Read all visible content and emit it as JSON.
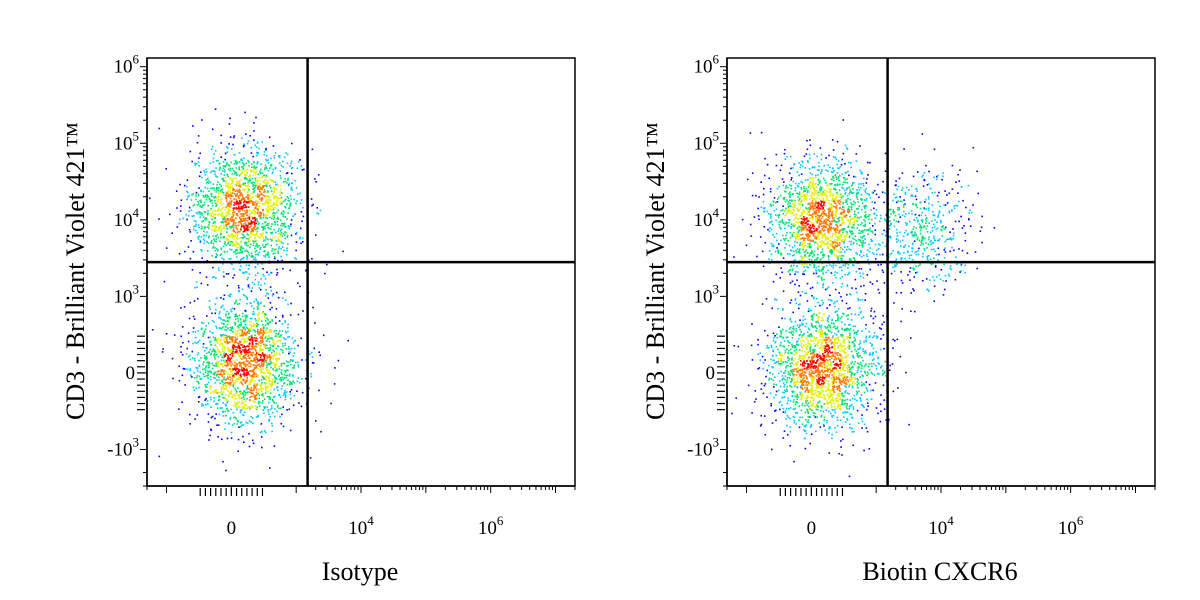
{
  "chart_data": [
    {
      "type": "scatter",
      "variant": "flow-cytometry-density-dot-plot",
      "xlabel": "Isotype",
      "ylabel": "CD3 - Brilliant Violet 421™",
      "x_scale": "biexponential",
      "y_scale": "biexponential",
      "xlim": [
        -2000,
        20000000
      ],
      "ylim": [
        -3000,
        1300000
      ],
      "x_ticks": [
        {
          "value": 0,
          "base": "0",
          "exp": ""
        },
        {
          "value": 10000,
          "base": "10",
          "exp": "4"
        },
        {
          "value": 1000000,
          "base": "10",
          "exp": "6"
        }
      ],
      "y_ticks": [
        {
          "value": 1000000,
          "base": "10",
          "exp": "6"
        },
        {
          "value": 100000,
          "base": "10",
          "exp": "5"
        },
        {
          "value": 10000,
          "base": "10",
          "exp": "4"
        },
        {
          "value": 1000,
          "base": "10",
          "exp": "3"
        },
        {
          "value": 0,
          "base": "0",
          "exp": ""
        },
        {
          "value": -1000,
          "base": "-10",
          "exp": "3"
        }
      ],
      "gate": {
        "x": 1500,
        "y": 2800
      },
      "populations": [
        {
          "name": "",
          "x_center": 200,
          "y_center": 14000,
          "count": 1800
        },
        {
          "name": "",
          "x_center": 200,
          "y_center": 150,
          "count": 1900
        }
      ],
      "density_colors": [
        "#0000ff",
        "#00c8ff",
        "#00e070",
        "#e0f000",
        "#ff7a00",
        "#ff0000"
      ]
    },
    {
      "type": "scatter",
      "variant": "flow-cytometry-density-dot-plot",
      "xlabel": "Biotin CXCR6",
      "ylabel": "CD3 - Brilliant Violet 421™",
      "x_scale": "biexponential",
      "y_scale": "biexponential",
      "xlim": [
        -2000,
        20000000
      ],
      "ylim": [
        -3000,
        1300000
      ],
      "x_ticks": [
        {
          "value": 0,
          "base": "0",
          "exp": ""
        },
        {
          "value": 10000,
          "base": "10",
          "exp": "4"
        },
        {
          "value": 1000000,
          "base": "10",
          "exp": "6"
        }
      ],
      "y_ticks": [
        {
          "value": 1000000,
          "base": "10",
          "exp": "6"
        },
        {
          "value": 100000,
          "base": "10",
          "exp": "5"
        },
        {
          "value": 10000,
          "base": "10",
          "exp": "4"
        },
        {
          "value": 1000,
          "base": "10",
          "exp": "3"
        },
        {
          "value": 0,
          "base": "0",
          "exp": ""
        },
        {
          "value": -1000,
          "base": "-10",
          "exp": "3"
        }
      ],
      "gate": {
        "x": 1500,
        "y": 2800
      },
      "populations": [
        {
          "name": "",
          "x_center": 150,
          "y_center": 10000,
          "count": 1700
        },
        {
          "name": "",
          "x_center": 5000,
          "y_center": 7000,
          "count": 500
        },
        {
          "name": "",
          "x_center": 150,
          "y_center": 100,
          "count": 1900
        }
      ],
      "density_colors": [
        "#0000ff",
        "#00c8ff",
        "#00e070",
        "#e0f000",
        "#ff7a00",
        "#ff0000"
      ]
    }
  ]
}
